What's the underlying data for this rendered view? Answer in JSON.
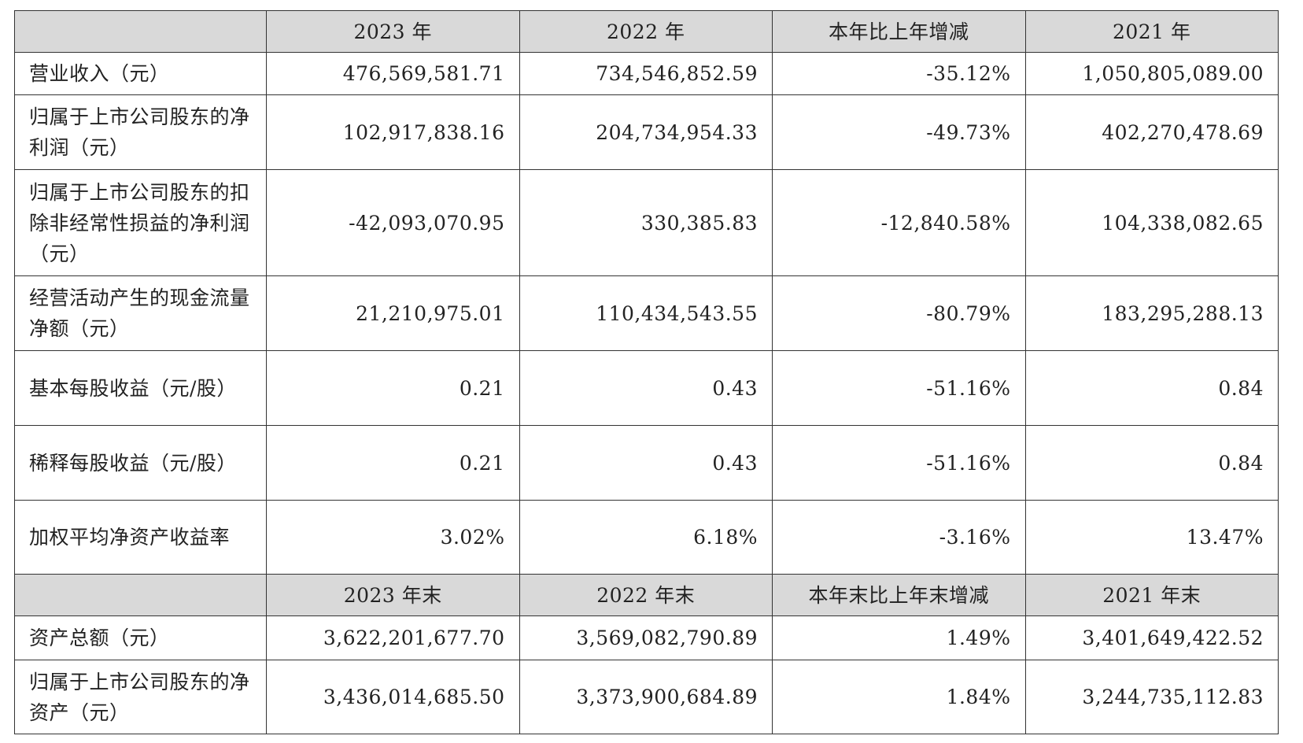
{
  "header1": [
    "",
    "2023 年",
    "2022 年",
    "本年比上年增减",
    "2021 年"
  ],
  "rows1": [
    {
      "label": "营业收入（元）",
      "values": [
        "476,569,581.71",
        "734,546,852.59",
        "-35.12%",
        "1,050,805,089.00"
      ]
    },
    {
      "label": "归属于上市公司股东的净利润（元）",
      "values": [
        "102,917,838.16",
        "204,734,954.33",
        "-49.73%",
        "402,270,478.69"
      ]
    },
    {
      "label": "归属于上市公司股东的扣除非经常性损益的净利润（元）",
      "values": [
        "-42,093,070.95",
        "330,385.83",
        "-12,840.58%",
        "104,338,082.65"
      ]
    },
    {
      "label": "经营活动产生的现金流量净额（元）",
      "values": [
        "21,210,975.01",
        "110,434,543.55",
        "-80.79%",
        "183,295,288.13"
      ]
    },
    {
      "label": "基本每股收益（元/股）",
      "values": [
        "0.21",
        "0.43",
        "-51.16%",
        "0.84"
      ]
    },
    {
      "label": "稀释每股收益（元/股）",
      "values": [
        "0.21",
        "0.43",
        "-51.16%",
        "0.84"
      ]
    },
    {
      "label": "加权平均净资产收益率",
      "values": [
        "3.02%",
        "6.18%",
        "-3.16%",
        "13.47%"
      ]
    }
  ],
  "header2": [
    "",
    "2023 年末",
    "2022 年末",
    "本年末比上年末增减",
    "2021 年末"
  ],
  "rows2": [
    {
      "label": "资产总额（元）",
      "values": [
        "3,622,201,677.70",
        "3,569,082,790.89",
        "1.49%",
        "3,401,649,422.52"
      ]
    },
    {
      "label": "归属于上市公司股东的净资产（元）",
      "values": [
        "3,436,014,685.50",
        "3,373,900,684.89",
        "1.84%",
        "3,244,735,112.83"
      ]
    }
  ]
}
